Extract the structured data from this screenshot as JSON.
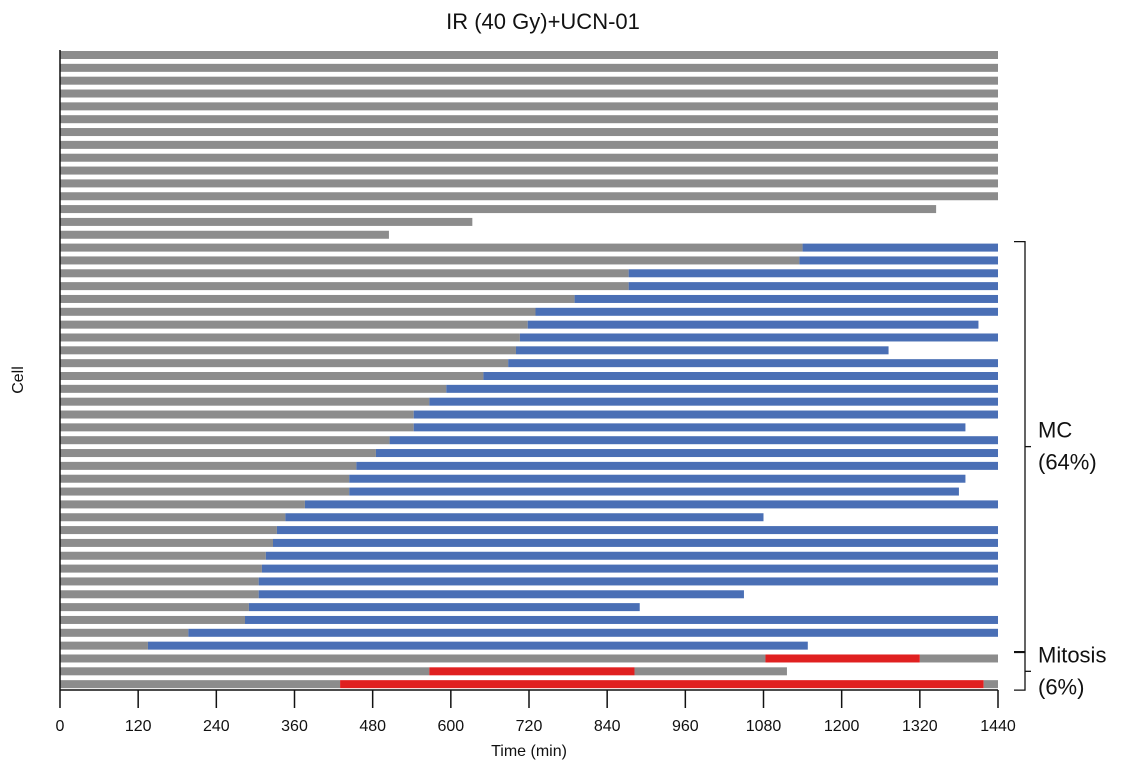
{
  "chart_data": {
    "type": "bar",
    "orientation": "horizontal",
    "stacked": true,
    "title": "IR (40 Gy)+UCN-01",
    "xlabel": "Time (min)",
    "ylabel": "Cell",
    "xlim": [
      0,
      1440
    ],
    "xticks": [
      0,
      120,
      240,
      360,
      480,
      600,
      720,
      840,
      960,
      1080,
      1200,
      1320,
      1440
    ],
    "colors": {
      "interphase": "#8c8c8c",
      "mc": "#4a6fb5",
      "mitosis": "#e02020"
    },
    "cells": [
      {
        "segments": [
          {
            "state": "interphase",
            "start": 0,
            "end": 1440
          }
        ]
      },
      {
        "segments": [
          {
            "state": "interphase",
            "start": 0,
            "end": 1440
          }
        ]
      },
      {
        "segments": [
          {
            "state": "interphase",
            "start": 0,
            "end": 1440
          }
        ]
      },
      {
        "segments": [
          {
            "state": "interphase",
            "start": 0,
            "end": 1440
          }
        ]
      },
      {
        "segments": [
          {
            "state": "interphase",
            "start": 0,
            "end": 1440
          }
        ]
      },
      {
        "segments": [
          {
            "state": "interphase",
            "start": 0,
            "end": 1440
          }
        ]
      },
      {
        "segments": [
          {
            "state": "interphase",
            "start": 0,
            "end": 1440
          }
        ]
      },
      {
        "segments": [
          {
            "state": "interphase",
            "start": 0,
            "end": 1440
          }
        ]
      },
      {
        "segments": [
          {
            "state": "interphase",
            "start": 0,
            "end": 1440
          }
        ]
      },
      {
        "segments": [
          {
            "state": "interphase",
            "start": 0,
            "end": 1440
          }
        ]
      },
      {
        "segments": [
          {
            "state": "interphase",
            "start": 0,
            "end": 1440
          }
        ]
      },
      {
        "segments": [
          {
            "state": "interphase",
            "start": 0,
            "end": 1440
          }
        ]
      },
      {
        "segments": [
          {
            "state": "interphase",
            "start": 0,
            "end": 1345
          }
        ]
      },
      {
        "segments": [
          {
            "state": "interphase",
            "start": 0,
            "end": 633
          }
        ]
      },
      {
        "segments": [
          {
            "state": "interphase",
            "start": 0,
            "end": 505
          }
        ]
      },
      {
        "segments": [
          {
            "state": "interphase",
            "start": 0,
            "end": 1140
          },
          {
            "state": "mc",
            "start": 1140,
            "end": 1440
          }
        ]
      },
      {
        "segments": [
          {
            "state": "interphase",
            "start": 0,
            "end": 1135
          },
          {
            "state": "mc",
            "start": 1135,
            "end": 1440
          }
        ]
      },
      {
        "segments": [
          {
            "state": "interphase",
            "start": 0,
            "end": 873
          },
          {
            "state": "mc",
            "start": 873,
            "end": 1440
          }
        ]
      },
      {
        "segments": [
          {
            "state": "interphase",
            "start": 0,
            "end": 873
          },
          {
            "state": "mc",
            "start": 873,
            "end": 1440
          }
        ]
      },
      {
        "segments": [
          {
            "state": "interphase",
            "start": 0,
            "end": 790
          },
          {
            "state": "mc",
            "start": 790,
            "end": 1440
          }
        ]
      },
      {
        "segments": [
          {
            "state": "interphase",
            "start": 0,
            "end": 730
          },
          {
            "state": "mc",
            "start": 730,
            "end": 1440
          }
        ]
      },
      {
        "segments": [
          {
            "state": "interphase",
            "start": 0,
            "end": 718
          },
          {
            "state": "mc",
            "start": 718,
            "end": 1410
          }
        ]
      },
      {
        "segments": [
          {
            "state": "interphase",
            "start": 0,
            "end": 706
          },
          {
            "state": "mc",
            "start": 706,
            "end": 1440
          }
        ]
      },
      {
        "segments": [
          {
            "state": "interphase",
            "start": 0,
            "end": 700
          },
          {
            "state": "mc",
            "start": 700,
            "end": 1272
          }
        ]
      },
      {
        "segments": [
          {
            "state": "interphase",
            "start": 0,
            "end": 688
          },
          {
            "state": "mc",
            "start": 688,
            "end": 1440
          }
        ]
      },
      {
        "segments": [
          {
            "state": "interphase",
            "start": 0,
            "end": 650
          },
          {
            "state": "mc",
            "start": 650,
            "end": 1440
          }
        ]
      },
      {
        "segments": [
          {
            "state": "interphase",
            "start": 0,
            "end": 593
          },
          {
            "state": "mc",
            "start": 593,
            "end": 1440
          }
        ]
      },
      {
        "segments": [
          {
            "state": "interphase",
            "start": 0,
            "end": 567
          },
          {
            "state": "mc",
            "start": 567,
            "end": 1440
          }
        ]
      },
      {
        "segments": [
          {
            "state": "interphase",
            "start": 0,
            "end": 543
          },
          {
            "state": "mc",
            "start": 543,
            "end": 1440
          }
        ]
      },
      {
        "segments": [
          {
            "state": "interphase",
            "start": 0,
            "end": 543
          },
          {
            "state": "mc",
            "start": 543,
            "end": 1390
          }
        ]
      },
      {
        "segments": [
          {
            "state": "interphase",
            "start": 0,
            "end": 506
          },
          {
            "state": "mc",
            "start": 506,
            "end": 1440
          }
        ]
      },
      {
        "segments": [
          {
            "state": "interphase",
            "start": 0,
            "end": 485
          },
          {
            "state": "mc",
            "start": 485,
            "end": 1440
          }
        ]
      },
      {
        "segments": [
          {
            "state": "interphase",
            "start": 0,
            "end": 455
          },
          {
            "state": "mc",
            "start": 455,
            "end": 1440
          }
        ]
      },
      {
        "segments": [
          {
            "state": "interphase",
            "start": 0,
            "end": 444
          },
          {
            "state": "mc",
            "start": 444,
            "end": 1390
          }
        ]
      },
      {
        "segments": [
          {
            "state": "interphase",
            "start": 0,
            "end": 444
          },
          {
            "state": "mc",
            "start": 444,
            "end": 1380
          }
        ]
      },
      {
        "segments": [
          {
            "state": "interphase",
            "start": 0,
            "end": 376
          },
          {
            "state": "mc",
            "start": 376,
            "end": 1440
          }
        ]
      },
      {
        "segments": [
          {
            "state": "interphase",
            "start": 0,
            "end": 346
          },
          {
            "state": "mc",
            "start": 346,
            "end": 1080
          }
        ]
      },
      {
        "segments": [
          {
            "state": "interphase",
            "start": 0,
            "end": 333
          },
          {
            "state": "mc",
            "start": 333,
            "end": 1440
          }
        ]
      },
      {
        "segments": [
          {
            "state": "interphase",
            "start": 0,
            "end": 327
          },
          {
            "state": "mc",
            "start": 327,
            "end": 1440
          }
        ]
      },
      {
        "segments": [
          {
            "state": "interphase",
            "start": 0,
            "end": 316
          },
          {
            "state": "mc",
            "start": 316,
            "end": 1440
          }
        ]
      },
      {
        "segments": [
          {
            "state": "interphase",
            "start": 0,
            "end": 310
          },
          {
            "state": "mc",
            "start": 310,
            "end": 1440
          }
        ]
      },
      {
        "segments": [
          {
            "state": "interphase",
            "start": 0,
            "end": 305
          },
          {
            "state": "mc",
            "start": 305,
            "end": 1440
          }
        ]
      },
      {
        "segments": [
          {
            "state": "interphase",
            "start": 0,
            "end": 305
          },
          {
            "state": "mc",
            "start": 305,
            "end": 1050
          }
        ]
      },
      {
        "segments": [
          {
            "state": "interphase",
            "start": 0,
            "end": 290
          },
          {
            "state": "mc",
            "start": 290,
            "end": 890
          }
        ]
      },
      {
        "segments": [
          {
            "state": "interphase",
            "start": 0,
            "end": 284
          },
          {
            "state": "mc",
            "start": 284,
            "end": 1440
          }
        ]
      },
      {
        "segments": [
          {
            "state": "interphase",
            "start": 0,
            "end": 197
          },
          {
            "state": "mc",
            "start": 197,
            "end": 1440
          }
        ]
      },
      {
        "segments": [
          {
            "state": "interphase",
            "start": 0,
            "end": 135
          },
          {
            "state": "mc",
            "start": 135,
            "end": 1148
          }
        ]
      },
      {
        "segments": [
          {
            "state": "interphase",
            "start": 0,
            "end": 1083
          },
          {
            "state": "mitosis",
            "start": 1083,
            "end": 1320
          },
          {
            "state": "interphase",
            "start": 1320,
            "end": 1440
          }
        ]
      },
      {
        "segments": [
          {
            "state": "interphase",
            "start": 0,
            "end": 567
          },
          {
            "state": "mitosis",
            "start": 567,
            "end": 882
          },
          {
            "state": "interphase",
            "start": 882,
            "end": 1116
          }
        ]
      },
      {
        "segments": [
          {
            "state": "interphase",
            "start": 0,
            "end": 430
          },
          {
            "state": "mitosis",
            "start": 430,
            "end": 1418
          },
          {
            "state": "interphase",
            "start": 1418,
            "end": 1440
          }
        ]
      }
    ],
    "annotations": [
      {
        "lines": [
          "MC",
          "(64%)"
        ],
        "from_cell": 15,
        "to_cell": 46
      },
      {
        "lines": [
          "Mitosis",
          "(6%)"
        ],
        "from_cell": 47,
        "to_cell": 49
      }
    ]
  }
}
